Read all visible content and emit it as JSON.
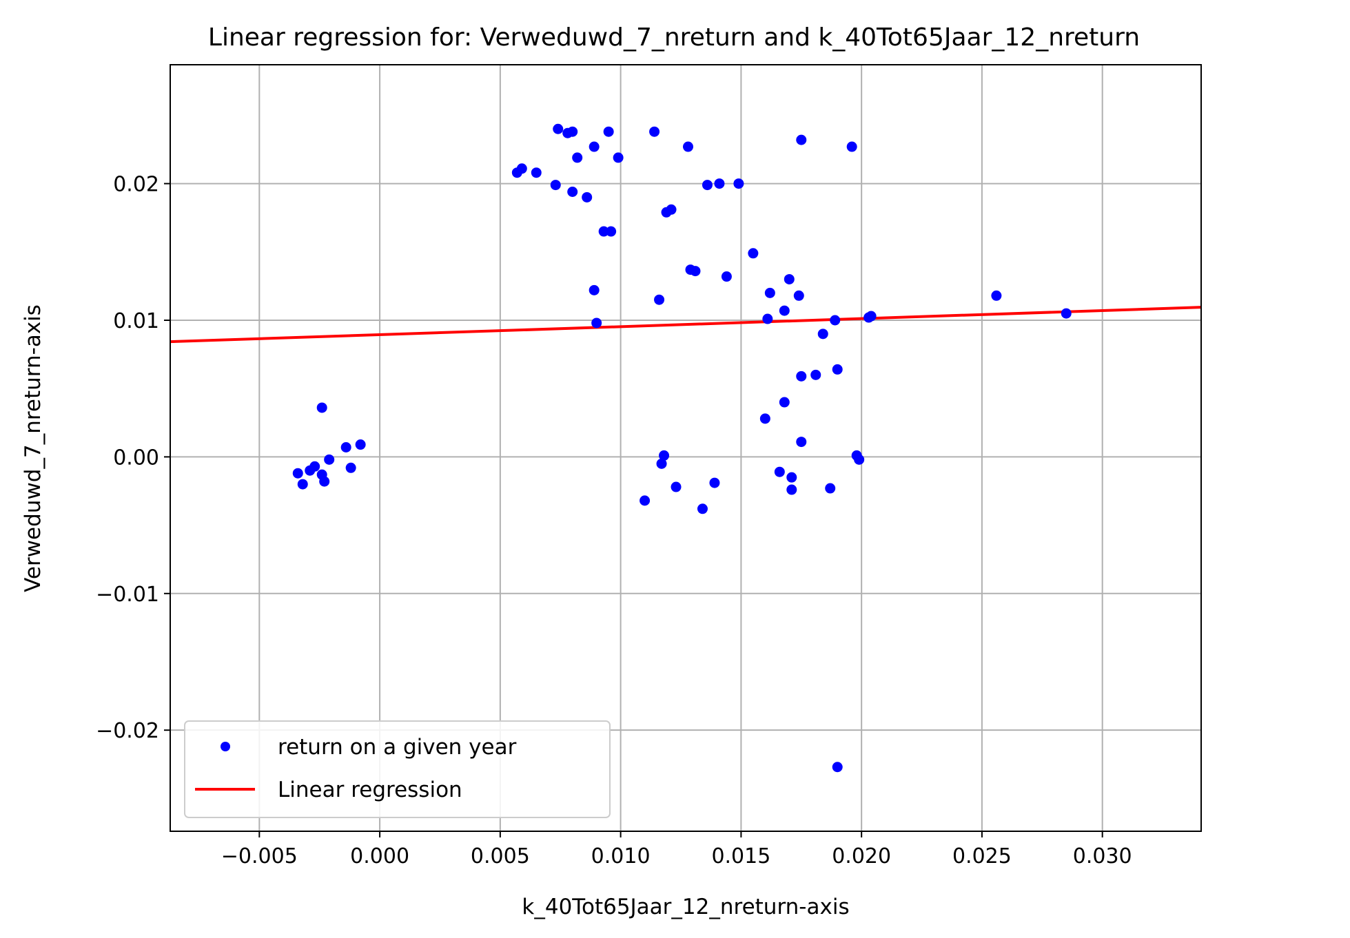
{
  "chart_data": {
    "type": "scatter",
    "title": "Linear regression for: Verweduwd_7_nreturn and k_40Tot65Jaar_12_nreturn",
    "xlabel": "k_40Tot65Jaar_12_nreturn-axis",
    "ylabel": "Verweduwd_7_nreturn-axis",
    "xlim": [
      -0.0087,
      0.0341
    ],
    "ylim": [
      -0.0274,
      0.0287
    ],
    "grid": true,
    "legend_position": "lower-left",
    "x_ticks": [
      {
        "value": -0.005,
        "label": "−0.005"
      },
      {
        "value": 0.0,
        "label": "0.000"
      },
      {
        "value": 0.005,
        "label": "0.005"
      },
      {
        "value": 0.01,
        "label": "0.010"
      },
      {
        "value": 0.015,
        "label": "0.015"
      },
      {
        "value": 0.02,
        "label": "0.020"
      },
      {
        "value": 0.025,
        "label": "0.025"
      },
      {
        "value": 0.03,
        "label": "0.030"
      }
    ],
    "y_ticks": [
      {
        "value": -0.02,
        "label": "−0.02"
      },
      {
        "value": -0.01,
        "label": "−0.01"
      },
      {
        "value": 0.0,
        "label": "0.00"
      },
      {
        "value": 0.01,
        "label": "0.01"
      },
      {
        "value": 0.02,
        "label": "0.02"
      }
    ],
    "series": [
      {
        "name": "return on a given year",
        "kind": "scatter",
        "color": "#0000ff",
        "points": [
          [
            -0.0034,
            -0.0012
          ],
          [
            -0.0032,
            -0.002
          ],
          [
            -0.0029,
            -0.001
          ],
          [
            -0.0027,
            -0.0007
          ],
          [
            -0.0024,
            -0.0013
          ],
          [
            -0.0023,
            -0.0018
          ],
          [
            -0.0021,
            -0.0002
          ],
          [
            -0.0024,
            0.0036
          ],
          [
            -0.0014,
            0.0007
          ],
          [
            -0.0012,
            -0.0008
          ],
          [
            -0.0008,
            0.0009
          ],
          [
            0.0057,
            0.0208
          ],
          [
            0.0059,
            0.0211
          ],
          [
            0.0065,
            0.0208
          ],
          [
            0.0073,
            0.0199
          ],
          [
            0.0074,
            0.024
          ],
          [
            0.0078,
            0.0237
          ],
          [
            0.008,
            0.0238
          ],
          [
            0.008,
            0.0194
          ],
          [
            0.0082,
            0.0219
          ],
          [
            0.0086,
            0.019
          ],
          [
            0.0089,
            0.0227
          ],
          [
            0.0089,
            0.0122
          ],
          [
            0.009,
            0.0098
          ],
          [
            0.0093,
            0.0165
          ],
          [
            0.0095,
            0.0238
          ],
          [
            0.0096,
            0.0165
          ],
          [
            0.0099,
            0.0219
          ],
          [
            0.011,
            -0.0032
          ],
          [
            0.0114,
            0.0238
          ],
          [
            0.0116,
            0.0115
          ],
          [
            0.0117,
            -0.0005
          ],
          [
            0.0118,
            0.0001
          ],
          [
            0.0119,
            0.0179
          ],
          [
            0.0121,
            0.0181
          ],
          [
            0.0123,
            -0.0022
          ],
          [
            0.0128,
            0.0227
          ],
          [
            0.0129,
            0.0137
          ],
          [
            0.0131,
            0.0136
          ],
          [
            0.0134,
            -0.0038
          ],
          [
            0.0136,
            0.0199
          ],
          [
            0.0139,
            -0.0019
          ],
          [
            0.0141,
            0.02
          ],
          [
            0.0144,
            0.0132
          ],
          [
            0.0149,
            0.02
          ],
          [
            0.0155,
            0.0149
          ],
          [
            0.016,
            0.0028
          ],
          [
            0.0161,
            0.0101
          ],
          [
            0.0162,
            0.012
          ],
          [
            0.0166,
            -0.0011
          ],
          [
            0.0168,
            0.0107
          ],
          [
            0.0168,
            0.004
          ],
          [
            0.017,
            0.013
          ],
          [
            0.0171,
            -0.0015
          ],
          [
            0.0171,
            -0.0024
          ],
          [
            0.0174,
            0.0118
          ],
          [
            0.0175,
            0.0059
          ],
          [
            0.0175,
            0.0232
          ],
          [
            0.0175,
            0.0011
          ],
          [
            0.0181,
            0.006
          ],
          [
            0.0184,
            0.009
          ],
          [
            0.0187,
            -0.0023
          ],
          [
            0.0189,
            0.01
          ],
          [
            0.019,
            0.0064
          ],
          [
            0.019,
            -0.0227
          ],
          [
            0.0196,
            0.0227
          ],
          [
            0.0198,
            0.0001
          ],
          [
            0.0199,
            -0.0002
          ],
          [
            0.0203,
            0.0102
          ],
          [
            0.0204,
            0.0103
          ],
          [
            0.0256,
            0.0118
          ],
          [
            0.0285,
            0.0105
          ]
        ]
      },
      {
        "name": "Linear regression",
        "kind": "line",
        "color": "#ff0000",
        "points": [
          [
            -0.0087,
            0.00843
          ],
          [
            0.0341,
            0.01095
          ]
        ]
      }
    ]
  }
}
